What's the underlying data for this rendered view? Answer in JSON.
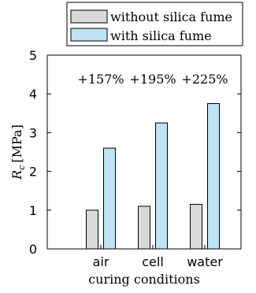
{
  "chart_data": {
    "type": "bar",
    "categories": [
      "air",
      "cell",
      "water"
    ],
    "series": [
      {
        "name": "without silica fume",
        "values": [
          1.0,
          1.1,
          1.15
        ],
        "color": "#d9d9d9"
      },
      {
        "name": "with silica fume",
        "values": [
          2.6,
          3.25,
          3.75
        ],
        "color": "#bfe3f5"
      }
    ],
    "annotations": [
      "+157%",
      "+195%",
      "+225%"
    ],
    "xlabel": "curing conditions",
    "ylabel_main": "R",
    "ylabel_sub": "c",
    "ylabel_unit": "[MPa]",
    "ylim": [
      0,
      5
    ],
    "yticks": [
      "0",
      "1",
      "2",
      "3",
      "4",
      "5"
    ],
    "grid": false,
    "legend_position": "top"
  }
}
